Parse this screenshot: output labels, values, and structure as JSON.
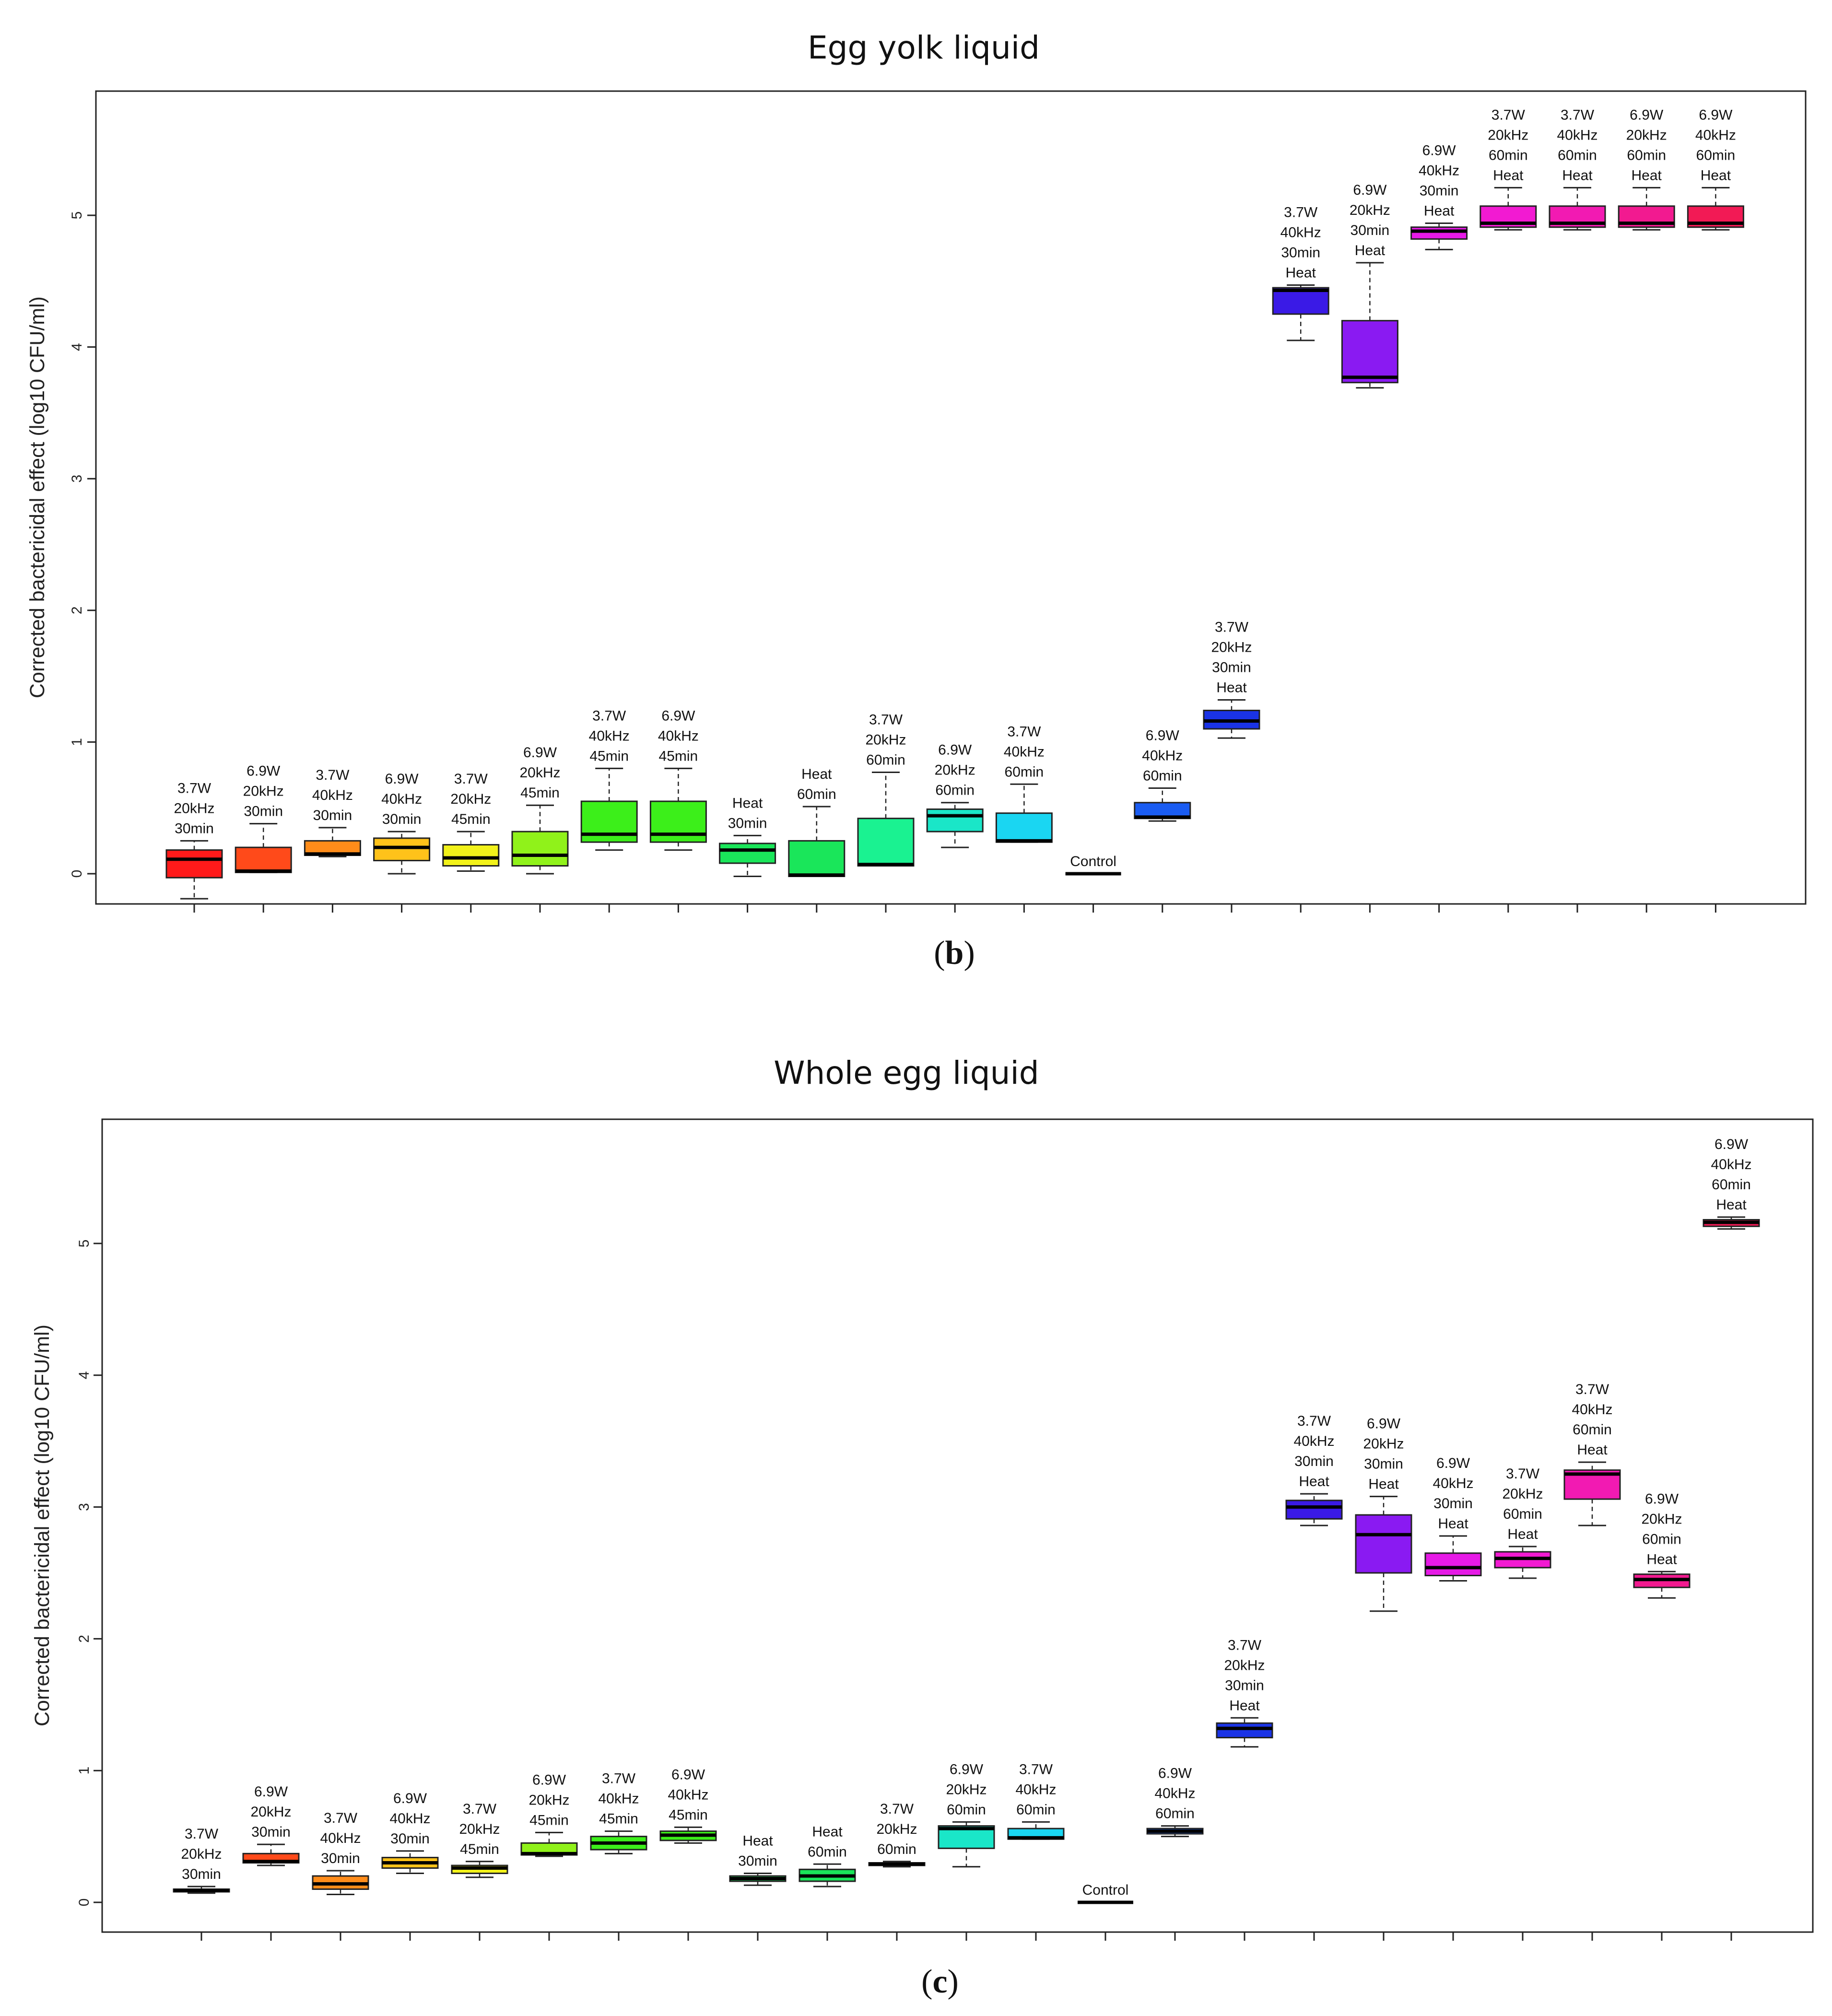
{
  "chart_data": [
    {
      "type": "box",
      "panel": "(b)",
      "panel_letter": "b",
      "title": "Egg yolk liquid",
      "ylabel": "Corrected bactericidal effect (log10 CFU/ml)",
      "ylim": [
        -0.25,
        5.95
      ],
      "yticks": [
        0,
        1,
        2,
        3,
        4,
        5
      ],
      "boxes": [
        {
          "label": [
            "3.7W",
            "20kHz",
            "30min"
          ],
          "color": "#ff1a1a",
          "stats": [
            -0.19,
            -0.03,
            0.11,
            0.18,
            0.25
          ]
        },
        {
          "label": [
            "6.9W",
            "20kHz",
            "30min"
          ],
          "color": "#ff4a1a",
          "stats": [
            0.01,
            0.01,
            0.02,
            0.2,
            0.38
          ]
        },
        {
          "label": [
            "3.7W",
            "40kHz",
            "30min"
          ],
          "color": "#ff8c1a",
          "stats": [
            0.13,
            0.14,
            0.15,
            0.25,
            0.35
          ]
        },
        {
          "label": [
            "6.9W",
            "40kHz",
            "30min"
          ],
          "color": "#ffc21a",
          "stats": [
            0.0,
            0.1,
            0.2,
            0.27,
            0.32
          ]
        },
        {
          "label": [
            "3.7W",
            "20kHz",
            "45min"
          ],
          "color": "#f2f21a",
          "stats": [
            0.02,
            0.06,
            0.12,
            0.22,
            0.32
          ]
        },
        {
          "label": [
            "6.9W",
            "20kHz",
            "45min"
          ],
          "color": "#90f21a",
          "stats": [
            0.0,
            0.06,
            0.14,
            0.32,
            0.52
          ]
        },
        {
          "label": [
            "3.7W",
            "40kHz",
            "45min"
          ],
          "color": "#3cef1a",
          "stats": [
            0.18,
            0.24,
            0.3,
            0.55,
            0.8
          ]
        },
        {
          "label": [
            "6.9W",
            "40kHz",
            "45min"
          ],
          "color": "#3cef1a",
          "stats": [
            0.18,
            0.24,
            0.3,
            0.55,
            0.8
          ]
        },
        {
          "label": [
            "Heat",
            "30min"
          ],
          "color": "#1ae65a",
          "stats": [
            -0.02,
            0.08,
            0.18,
            0.23,
            0.29
          ]
        },
        {
          "label": [
            "Heat",
            "60min"
          ],
          "color": "#1ae65a",
          "stats": [
            -0.02,
            -0.02,
            -0.01,
            0.25,
            0.51
          ]
        },
        {
          "label": [
            "3.7W",
            "20kHz",
            "60min"
          ],
          "color": "#1af291",
          "stats": [
            0.06,
            0.06,
            0.07,
            0.42,
            0.77
          ]
        },
        {
          "label": [
            "6.9W",
            "20kHz",
            "60min"
          ],
          "color": "#1ae6c8",
          "stats": [
            0.2,
            0.32,
            0.44,
            0.49,
            0.54
          ]
        },
        {
          "label": [
            "3.7W",
            "40kHz",
            "60min"
          ],
          "color": "#1ad6f2",
          "stats": [
            0.24,
            0.24,
            0.25,
            0.46,
            0.68
          ]
        },
        {
          "label": [
            "Control"
          ],
          "color": "#000000",
          "stats": [
            0,
            0,
            0,
            0,
            0
          ]
        },
        {
          "label": [
            "6.9W",
            "40kHz",
            "60min"
          ],
          "color": "#1a5cf2",
          "stats": [
            0.4,
            0.42,
            0.43,
            0.54,
            0.65
          ]
        },
        {
          "label": [
            "3.7W",
            "20kHz",
            "30min",
            "Heat"
          ],
          "color": "#1a33e6",
          "stats": [
            1.03,
            1.1,
            1.16,
            1.24,
            1.32
          ]
        },
        {
          "label": [
            "3.7W",
            "40kHz",
            "30min",
            "Heat"
          ],
          "color": "#3a1ae6",
          "stats": [
            4.05,
            4.25,
            4.43,
            4.45,
            4.47
          ]
        },
        {
          "label": [
            "6.9W",
            "20kHz",
            "30min",
            "Heat"
          ],
          "color": "#8a1af2",
          "stats": [
            3.69,
            3.73,
            3.77,
            4.2,
            4.64
          ]
        },
        {
          "label": [
            "6.9W",
            "40kHz",
            "30min",
            "Heat"
          ],
          "color": "#e61ae6",
          "stats": [
            4.74,
            4.82,
            4.88,
            4.91,
            4.94
          ]
        },
        {
          "label": [
            "3.7W",
            "20kHz",
            "60min",
            "Heat"
          ],
          "color": "#f21ad2",
          "stats": [
            4.89,
            4.91,
            4.94,
            5.07,
            5.21
          ]
        },
        {
          "label": [
            "3.7W",
            "40kHz",
            "60min",
            "Heat"
          ],
          "color": "#f21ab2",
          "stats": [
            4.89,
            4.91,
            4.94,
            5.07,
            5.21
          ]
        },
        {
          "label": [
            "6.9W",
            "20kHz",
            "60min",
            "Heat"
          ],
          "color": "#f21a90",
          "stats": [
            4.89,
            4.91,
            4.94,
            5.07,
            5.21
          ]
        },
        {
          "label": [
            "6.9W",
            "40kHz",
            "60min",
            "Heat"
          ],
          "color": "#f21a55",
          "stats": [
            4.89,
            4.91,
            4.94,
            5.07,
            5.21
          ]
        }
      ]
    },
    {
      "type": "box",
      "panel": "(c)",
      "panel_letter": "c",
      "title": "Whole egg liquid",
      "ylabel": "Corrected bactericidal effect (log10 CFU/ml)",
      "ylim": [
        -0.25,
        5.95
      ],
      "yticks": [
        0,
        1,
        2,
        3,
        4,
        5
      ],
      "boxes": [
        {
          "label": [
            "3.7W",
            "20kHz",
            "30min"
          ],
          "color": "#ff1a1a",
          "stats": [
            0.07,
            0.08,
            0.09,
            0.1,
            0.12
          ]
        },
        {
          "label": [
            "6.9W",
            "20kHz",
            "30min"
          ],
          "color": "#ff4a1a",
          "stats": [
            0.28,
            0.3,
            0.31,
            0.37,
            0.44
          ]
        },
        {
          "label": [
            "3.7W",
            "40kHz",
            "30min"
          ],
          "color": "#ff8c1a",
          "stats": [
            0.06,
            0.1,
            0.14,
            0.2,
            0.24
          ]
        },
        {
          "label": [
            "6.9W",
            "40kHz",
            "30min"
          ],
          "color": "#ffc21a",
          "stats": [
            0.22,
            0.26,
            0.3,
            0.34,
            0.39
          ]
        },
        {
          "label": [
            "3.7W",
            "20kHz",
            "45min"
          ],
          "color": "#f2f21a",
          "stats": [
            0.19,
            0.22,
            0.26,
            0.28,
            0.31
          ]
        },
        {
          "label": [
            "6.9W",
            "20kHz",
            "45min"
          ],
          "color": "#90f21a",
          "stats": [
            0.35,
            0.36,
            0.37,
            0.45,
            0.53
          ]
        },
        {
          "label": [
            "3.7W",
            "40kHz",
            "45min"
          ],
          "color": "#3cef1a",
          "stats": [
            0.37,
            0.4,
            0.45,
            0.5,
            0.54
          ]
        },
        {
          "label": [
            "6.9W",
            "40kHz",
            "45min"
          ],
          "color": "#3cef1a",
          "stats": [
            0.45,
            0.47,
            0.51,
            0.54,
            0.57
          ]
        },
        {
          "label": [
            "Heat",
            "30min"
          ],
          "color": "#1ae65a",
          "stats": [
            0.13,
            0.16,
            0.18,
            0.2,
            0.22
          ]
        },
        {
          "label": [
            "Heat",
            "60min"
          ],
          "color": "#1ae65a",
          "stats": [
            0.12,
            0.16,
            0.2,
            0.25,
            0.29
          ]
        },
        {
          "label": [
            "3.7W",
            "20kHz",
            "60min"
          ],
          "color": "#1af291",
          "stats": [
            0.27,
            0.28,
            0.29,
            0.3,
            0.31
          ]
        },
        {
          "label": [
            "6.9W",
            "20kHz",
            "60min"
          ],
          "color": "#1ae6c8",
          "stats": [
            0.27,
            0.41,
            0.56,
            0.58,
            0.61
          ]
        },
        {
          "label": [
            "3.7W",
            "40kHz",
            "60min"
          ],
          "color": "#1ad6f2",
          "stats": [
            0.48,
            0.48,
            0.49,
            0.56,
            0.61
          ]
        },
        {
          "label": [
            "Control"
          ],
          "color": "#000000",
          "stats": [
            0,
            0,
            0,
            0,
            0
          ]
        },
        {
          "label": [
            "6.9W",
            "40kHz",
            "60min"
          ],
          "color": "#1a5cf2",
          "stats": [
            0.5,
            0.52,
            0.54,
            0.56,
            0.58
          ]
        },
        {
          "label": [
            "3.7W",
            "20kHz",
            "30min",
            "Heat"
          ],
          "color": "#1a33e6",
          "stats": [
            1.18,
            1.25,
            1.32,
            1.36,
            1.4
          ]
        },
        {
          "label": [
            "3.7W",
            "40kHz",
            "30min",
            "Heat"
          ],
          "color": "#3a1ae6",
          "stats": [
            2.86,
            2.91,
            3.0,
            3.05,
            3.1
          ]
        },
        {
          "label": [
            "6.9W",
            "20kHz",
            "30min",
            "Heat"
          ],
          "color": "#8a1af2",
          "stats": [
            2.21,
            2.5,
            2.79,
            2.94,
            3.08
          ]
        },
        {
          "label": [
            "6.9W",
            "40kHz",
            "30min",
            "Heat"
          ],
          "color": "#e61ae6",
          "stats": [
            2.44,
            2.48,
            2.54,
            2.65,
            2.78
          ]
        },
        {
          "label": [
            "3.7W",
            "20kHz",
            "60min",
            "Heat"
          ],
          "color": "#f21ad2",
          "stats": [
            2.46,
            2.54,
            2.61,
            2.66,
            2.7
          ]
        },
        {
          "label": [
            "3.7W",
            "40kHz",
            "60min",
            "Heat"
          ],
          "color": "#f21ab2",
          "stats": [
            2.86,
            3.06,
            3.25,
            3.28,
            3.34
          ]
        },
        {
          "label": [
            "6.9W",
            "20kHz",
            "60min",
            "Heat"
          ],
          "color": "#f21a90",
          "stats": [
            2.31,
            2.39,
            2.45,
            2.49,
            2.51
          ]
        },
        {
          "label": [
            "6.9W",
            "40kHz",
            "60min",
            "Heat"
          ],
          "color": "#f21a55",
          "stats": [
            5.11,
            5.13,
            5.16,
            5.18,
            5.2
          ]
        }
      ]
    }
  ]
}
